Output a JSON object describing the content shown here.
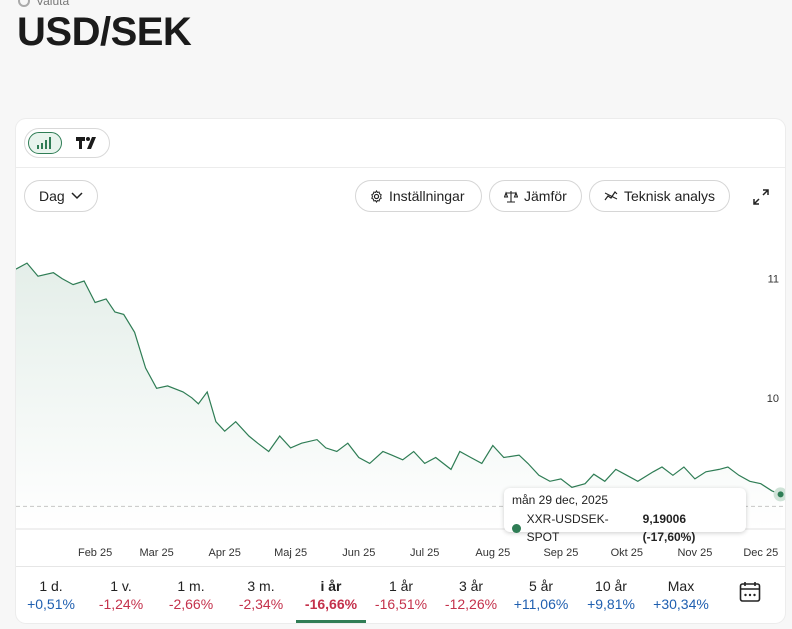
{
  "breadcrumb": "Valuta",
  "title": "USD/SEK",
  "toolbar": {
    "interval": "Dag",
    "settings": "Inställningar",
    "compare": "Jämför",
    "technical": "Teknisk analys"
  },
  "colors": {
    "accent": "#2f7d55",
    "positive": "#1f5fb0",
    "negative": "#c4314b"
  },
  "tooltip": {
    "date": "mån 29 dec, 2025",
    "series": "XXR-USDSEK-SPOT",
    "value": "9,19006 (-17,60%)"
  },
  "periods": [
    {
      "label": "1 d.",
      "change": "+0,51%",
      "dir": "pos"
    },
    {
      "label": "1 v.",
      "change": "-1,24%",
      "dir": "neg"
    },
    {
      "label": "1 m.",
      "change": "-2,66%",
      "dir": "neg"
    },
    {
      "label": "3 m.",
      "change": "-2,34%",
      "dir": "neg"
    },
    {
      "label": "i år",
      "change": "-16,66%",
      "dir": "neg",
      "active": true
    },
    {
      "label": "1 år",
      "change": "-16,51%",
      "dir": "neg"
    },
    {
      "label": "3 år",
      "change": "-12,26%",
      "dir": "neg"
    },
    {
      "label": "5 år",
      "change": "+11,06%",
      "dir": "pos"
    },
    {
      "label": "10 år",
      "change": "+9,81%",
      "dir": "pos"
    },
    {
      "label": "Max",
      "change": "+30,34%",
      "dir": "pos"
    }
  ],
  "chart_data": {
    "type": "area",
    "x_tick_labels": [
      "Feb 25",
      "Mar 25",
      "Apr 25",
      "Maj 25",
      "Jun 25",
      "Jul 25",
      "Aug 25",
      "Sep 25",
      "Okt 25",
      "Nov 25",
      "Dec 25"
    ],
    "y_tick_labels": [
      "10",
      "11"
    ],
    "y_ticks": [
      10,
      11
    ],
    "ylim": [
      8.9,
      11.5
    ],
    "reference_line": 9.09,
    "grid": false,
    "x": [
      "2025-01-15",
      "2025-01-20",
      "2025-01-25",
      "2025-02-01",
      "2025-02-05",
      "2025-02-10",
      "2025-02-15",
      "2025-02-20",
      "2025-02-25",
      "2025-03-01",
      "2025-03-05",
      "2025-03-10",
      "2025-03-15",
      "2025-03-20",
      "2025-03-25",
      "2025-04-01",
      "2025-04-05",
      "2025-04-08",
      "2025-04-12",
      "2025-04-16",
      "2025-04-20",
      "2025-04-25",
      "2025-05-01",
      "2025-05-05",
      "2025-05-10",
      "2025-05-15",
      "2025-05-20",
      "2025-05-25",
      "2025-06-01",
      "2025-06-05",
      "2025-06-10",
      "2025-06-15",
      "2025-06-20",
      "2025-06-25",
      "2025-07-01",
      "2025-07-05",
      "2025-07-10",
      "2025-07-15",
      "2025-07-20",
      "2025-07-25",
      "2025-08-01",
      "2025-08-05",
      "2025-08-10",
      "2025-08-15",
      "2025-08-20",
      "2025-08-25",
      "2025-09-01",
      "2025-09-05",
      "2025-09-10",
      "2025-09-15",
      "2025-09-20",
      "2025-09-25",
      "2025-10-01",
      "2025-10-05",
      "2025-10-10",
      "2025-10-15",
      "2025-10-20",
      "2025-10-25",
      "2025-11-01",
      "2025-11-05",
      "2025-11-10",
      "2025-11-15",
      "2025-11-20",
      "2025-11-25",
      "2025-12-01",
      "2025-12-05",
      "2025-12-10",
      "2025-12-15",
      "2025-12-20",
      "2025-12-25",
      "2025-12-29"
    ],
    "values": [
      11.08,
      11.13,
      11.02,
      11.05,
      11.0,
      10.95,
      10.98,
      10.8,
      10.83,
      10.72,
      10.7,
      10.55,
      10.25,
      10.08,
      10.1,
      10.05,
      10.0,
      9.95,
      10.05,
      9.8,
      9.72,
      9.8,
      9.68,
      9.62,
      9.55,
      9.68,
      9.58,
      9.62,
      9.65,
      9.58,
      9.55,
      9.62,
      9.5,
      9.45,
      9.55,
      9.52,
      9.48,
      9.55,
      9.45,
      9.5,
      9.4,
      9.55,
      9.5,
      9.45,
      9.6,
      9.5,
      9.52,
      9.45,
      9.35,
      9.3,
      9.32,
      9.25,
      9.28,
      9.36,
      9.3,
      9.4,
      9.35,
      9.3,
      9.38,
      9.42,
      9.35,
      9.42,
      9.32,
      9.38,
      9.4,
      9.42,
      9.35,
      9.3,
      9.28,
      9.22,
      9.19
    ]
  }
}
